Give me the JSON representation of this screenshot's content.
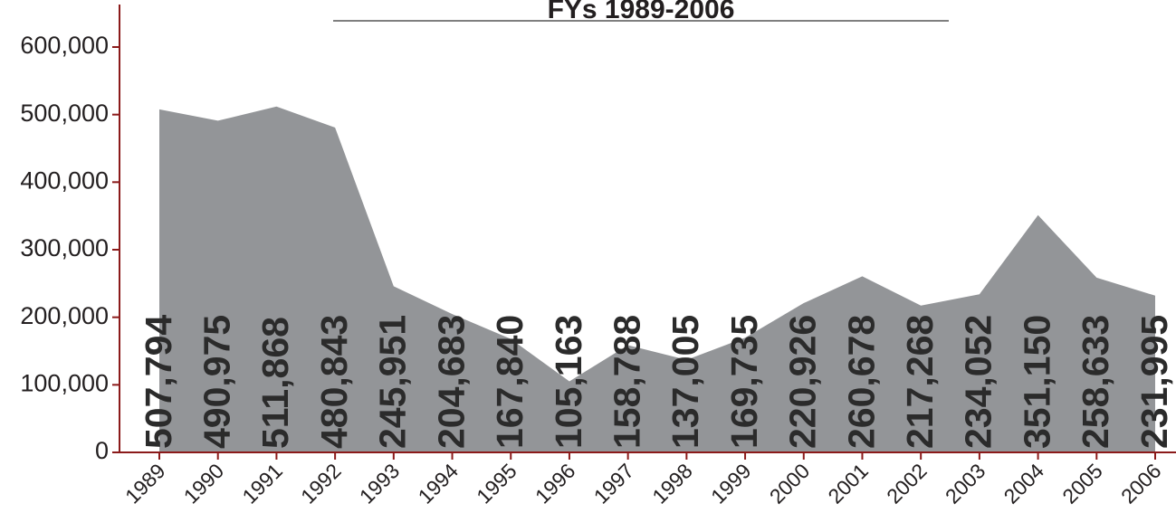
{
  "chart_data": {
    "type": "area",
    "title": "FYs 1989-2006",
    "categories": [
      "1989",
      "1990",
      "1991",
      "1992",
      "1993",
      "1994",
      "1995",
      "1996",
      "1997",
      "1998",
      "1999",
      "2000",
      "2001",
      "2002",
      "2003",
      "2004",
      "2005",
      "2006"
    ],
    "values": [
      507794,
      490975,
      511868,
      480843,
      245951,
      204683,
      167840,
      105163,
      158788,
      137005,
      169735,
      220926,
      260678,
      217268,
      234052,
      351150,
      258633,
      231995
    ],
    "value_labels": [
      "507,794",
      "490,975",
      "511,868",
      "480,843",
      "245,951",
      "204,683",
      "167,840",
      "105,163",
      "158,788",
      "137,005",
      "169,735",
      "220,926",
      "260,678",
      "217,268",
      "234,052",
      "351,150",
      "258,633",
      "231,995"
    ],
    "color": "#939598",
    "axis_color": "#8b1a1a",
    "ylim": [
      0,
      600000
    ],
    "yticks": [
      0,
      {
        "value": 100000,
        "label": "100,000"
      },
      {
        "value": 200000,
        "label": "200,000"
      },
      {
        "value": 300000,
        "label": "300,000"
      },
      {
        "value": 400000,
        "label": "400,000"
      },
      {
        "value": 500000,
        "label": "500,000"
      },
      {
        "value": 600000,
        "label": "600,000"
      }
    ]
  }
}
